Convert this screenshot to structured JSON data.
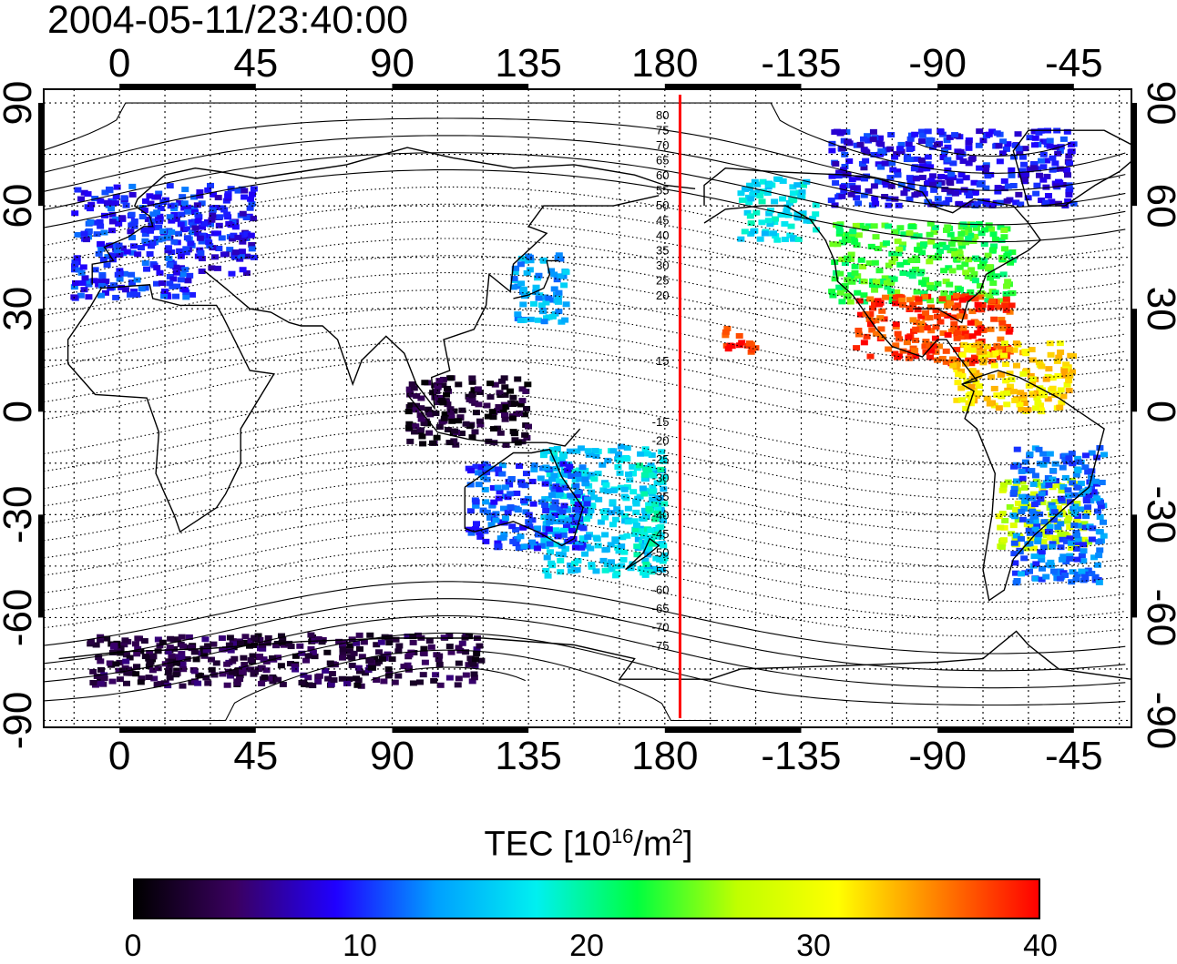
{
  "title": "2004-05-11/23:40:00",
  "map": {
    "projection": "equirectangular",
    "lon_tick_labels": [
      "0",
      "45",
      "90",
      "135",
      "180",
      "-135",
      "-90",
      "-45"
    ],
    "lat_tick_labels": [
      "90",
      "60",
      "30",
      "0",
      "-30",
      "-60",
      "-90"
    ],
    "lat_ticks": [
      90,
      60,
      30,
      0,
      -30,
      -60,
      -90
    ],
    "lon_ticks": [
      0,
      45,
      90,
      135,
      180,
      225,
      270,
      315
    ],
    "lon_range": [
      -25,
      334
    ],
    "lat_range": [
      -92,
      94
    ],
    "grid": true,
    "terminator_meridian_lon": 185,
    "terminator_color": "#ff0000",
    "magnetic_contour_labels_north": [
      "80",
      "75",
      "70",
      "65",
      "60",
      "55",
      "50",
      "45",
      "40",
      "35",
      "30",
      "25",
      "20",
      "15"
    ],
    "magnetic_contour_labels_south": [
      "-15",
      "-20",
      "-25",
      "-30",
      "-35",
      "-40",
      "-45",
      "-50",
      "-55",
      "-60",
      "-65",
      "-70",
      "-75"
    ]
  },
  "colorbar": {
    "title_prefix": "TEC  [10",
    "title_exp1": "16",
    "title_mid": "/m",
    "title_exp2": "2",
    "title_suffix": "]",
    "min": 0,
    "max": 40,
    "tick_labels": [
      "0",
      "10",
      "20",
      "30",
      "40"
    ],
    "tick_values": [
      0,
      10,
      20,
      30,
      40
    ],
    "colors": [
      "#000000",
      "#3a0060",
      "#2000ff",
      "#00a0ff",
      "#00f0f0",
      "#00ff40",
      "#c0ff00",
      "#ffff00",
      "#ff8000",
      "#ff0000"
    ]
  },
  "chart_data": {
    "type": "heatmap",
    "title": "2004-05-11/23:40:00",
    "xlabel": "",
    "ylabel": "",
    "value_unit": "10^16/m^2",
    "value_range": [
      0,
      40
    ],
    "regions": [
      {
        "lon_range": [
          -15,
          25
        ],
        "lat_range": [
          33,
          66
        ],
        "tec": 10
      },
      {
        "lon_range": [
          25,
          45
        ],
        "lat_range": [
          40,
          66
        ],
        "tec": 9
      },
      {
        "lon_range": [
          130,
          148
        ],
        "lat_range": [
          26,
          46
        ],
        "tec": 14
      },
      {
        "lon_range": [
          205,
          230
        ],
        "lat_range": [
          50,
          68
        ],
        "tec": 17
      },
      {
        "lon_range": [
          235,
          295
        ],
        "lat_range": [
          32,
          55
        ],
        "tec": 23
      },
      {
        "lon_range": [
          243,
          295
        ],
        "lat_range": [
          14,
          34
        ],
        "tec": 38
      },
      {
        "lon_range": [
          200,
          210
        ],
        "lat_range": [
          17,
          25
        ],
        "tec": 39
      },
      {
        "lon_range": [
          275,
          315
        ],
        "lat_range": [
          0,
          20
        ],
        "tec": 32
      },
      {
        "lon_range": [
          290,
          320
        ],
        "lat_range": [
          -40,
          -20
        ],
        "tec": 28
      },
      {
        "lon_range": [
          295,
          325
        ],
        "lat_range": [
          -50,
          -10
        ],
        "tec": 12
      },
      {
        "lon_range": [
          140,
          180
        ],
        "lat_range": [
          -48,
          -10
        ],
        "tec": 16
      },
      {
        "lon_range": [
          170,
          180
        ],
        "lat_range": [
          -45,
          -15
        ],
        "tec": 18
      },
      {
        "lon_range": [
          115,
          155
        ],
        "lat_range": [
          -40,
          -15
        ],
        "tec": 11
      },
      {
        "lon_range": [
          -10,
          120
        ],
        "lat_range": [
          -80,
          -65
        ],
        "tec": 3
      },
      {
        "lon_range": [
          235,
          315
        ],
        "lat_range": [
          60,
          82
        ],
        "tec": 9
      },
      {
        "lon_range": [
          95,
          135
        ],
        "lat_range": [
          -10,
          10
        ],
        "tec": 2
      }
    ]
  }
}
